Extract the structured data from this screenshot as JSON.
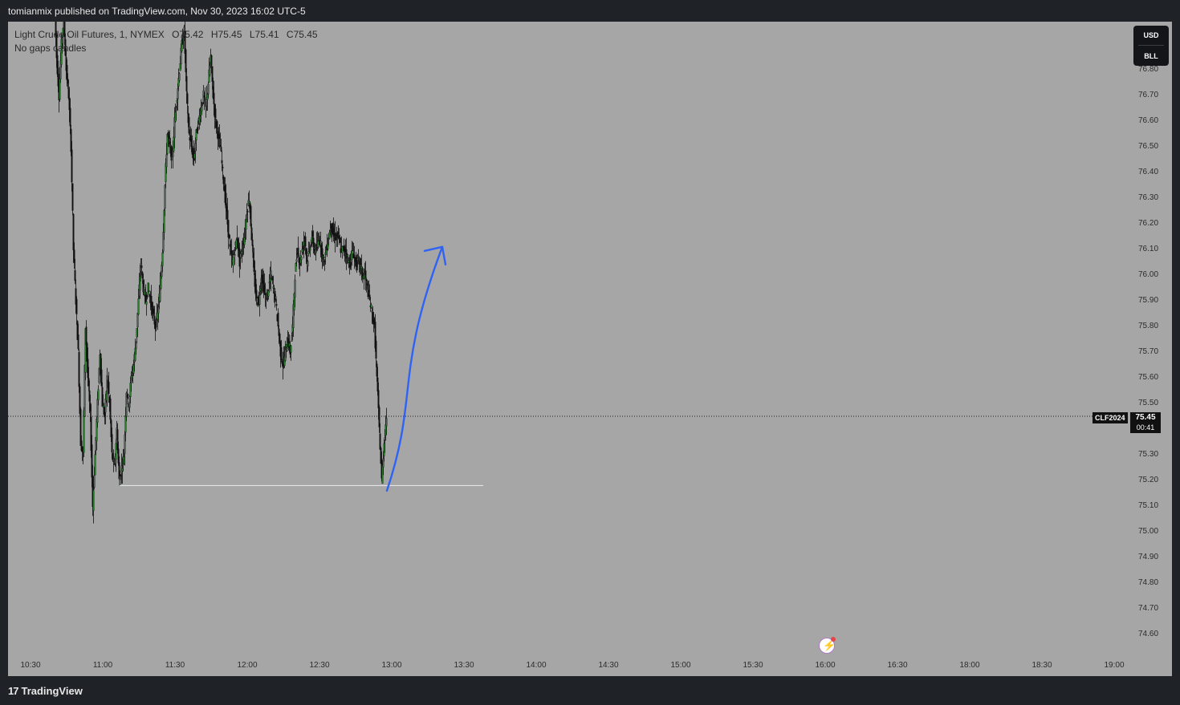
{
  "header": {
    "publisher_line": "tomianmix published on TradingView.com, Nov 30, 2023 16:02 UTC-5"
  },
  "legend": {
    "instrument": "Light Crude Oil Futures, 1, NYMEX",
    "open": "O75.42",
    "high": "H75.45",
    "low": "L75.41",
    "close": "C75.45",
    "subtitle": "No gaps candles"
  },
  "currency": {
    "top": "USD",
    "bottom": "BLL"
  },
  "price_axis": {
    "ticks": [
      "76.80",
      "76.70",
      "76.60",
      "76.50",
      "76.40",
      "76.30",
      "76.20",
      "76.10",
      "76.00",
      "75.90",
      "75.80",
      "75.70",
      "75.60",
      "75.50",
      "75.30",
      "75.20",
      "75.10",
      "75.00",
      "74.90",
      "74.80",
      "74.70",
      "74.60"
    ]
  },
  "time_axis": {
    "ticks": [
      "10:30",
      "11:00",
      "11:30",
      "12:00",
      "12:30",
      "13:00",
      "13:30",
      "14:00",
      "14:30",
      "15:00",
      "15:30",
      "16:00",
      "16:30",
      "18:00",
      "18:30",
      "19:00"
    ]
  },
  "last_price": {
    "symbol": "CLF2024",
    "price": "75.45",
    "countdown": "00:41"
  },
  "footer": {
    "brand": "TradingView",
    "brand_mark": "17"
  },
  "colors": {
    "chart_bg": "#a6a6a6",
    "frame_bg": "#1f2227",
    "candle_up": "#2e7d32",
    "candle_down": "#111111",
    "arrow": "#2962ff",
    "support_line": "#e8e8e8"
  },
  "chart_data": {
    "type": "line",
    "ylim": [
      74.56,
      76.86
    ],
    "xlim_minutes_since_open": [
      0,
      216
    ],
    "time_axis_start": "10:30",
    "note_xaxis": "minutes after 10:30",
    "series": [
      {
        "values": [
          [
            10,
            77.1
          ],
          [
            11,
            76.85
          ],
          [
            12,
            76.7
          ],
          [
            13,
            76.9
          ],
          [
            14,
            77.0
          ],
          [
            15,
            76.8
          ],
          [
            16,
            76.7
          ],
          [
            17,
            76.5
          ],
          [
            18,
            76.1
          ],
          [
            19,
            75.9
          ],
          [
            20,
            75.7
          ],
          [
            21,
            75.35
          ],
          [
            22,
            75.3
          ],
          [
            23,
            75.8
          ],
          [
            24,
            75.6
          ],
          [
            25,
            75.45
          ],
          [
            26,
            75.1
          ],
          [
            27,
            75.3
          ],
          [
            28,
            75.5
          ],
          [
            29,
            75.7
          ],
          [
            30,
            75.5
          ],
          [
            31,
            75.45
          ],
          [
            32,
            75.6
          ],
          [
            33,
            75.5
          ],
          [
            34,
            75.3
          ],
          [
            35,
            75.25
          ],
          [
            36,
            75.4
          ],
          [
            37,
            75.2
          ],
          [
            38,
            75.25
          ],
          [
            39,
            75.3
          ],
          [
            40,
            75.55
          ],
          [
            41,
            75.5
          ],
          [
            42,
            75.6
          ],
          [
            43,
            75.65
          ],
          [
            44,
            75.75
          ],
          [
            45,
            75.9
          ],
          [
            46,
            76.05
          ],
          [
            47,
            75.95
          ],
          [
            48,
            75.9
          ],
          [
            49,
            75.95
          ],
          [
            50,
            75.9
          ],
          [
            51,
            75.85
          ],
          [
            52,
            75.8
          ],
          [
            53,
            75.85
          ],
          [
            54,
            75.95
          ],
          [
            55,
            76.1
          ],
          [
            56,
            76.35
          ],
          [
            57,
            76.55
          ],
          [
            58,
            76.5
          ],
          [
            59,
            76.45
          ],
          [
            60,
            76.6
          ],
          [
            61,
            76.7
          ],
          [
            62,
            76.8
          ],
          [
            63,
            76.9
          ],
          [
            64,
            76.95
          ],
          [
            65,
            76.7
          ],
          [
            66,
            76.55
          ],
          [
            67,
            76.5
          ],
          [
            68,
            76.45
          ],
          [
            69,
            76.55
          ],
          [
            70,
            76.6
          ],
          [
            71,
            76.65
          ],
          [
            72,
            76.7
          ],
          [
            73,
            76.65
          ],
          [
            74,
            76.75
          ],
          [
            75,
            76.85
          ],
          [
            76,
            76.7
          ],
          [
            77,
            76.6
          ],
          [
            78,
            76.55
          ],
          [
            79,
            76.5
          ],
          [
            80,
            76.4
          ],
          [
            81,
            76.3
          ],
          [
            82,
            76.2
          ],
          [
            83,
            76.1
          ],
          [
            84,
            76.05
          ],
          [
            85,
            76.1
          ],
          [
            86,
            76.15
          ],
          [
            87,
            76.05
          ],
          [
            88,
            76.1
          ],
          [
            89,
            76.15
          ],
          [
            90,
            76.25
          ],
          [
            91,
            76.3
          ],
          [
            92,
            76.15
          ],
          [
            93,
            76.0
          ],
          [
            94,
            75.9
          ],
          [
            95,
            75.9
          ],
          [
            96,
            76.0
          ],
          [
            97,
            75.95
          ],
          [
            98,
            75.9
          ],
          [
            99,
            75.95
          ],
          [
            100,
            76.0
          ],
          [
            101,
            75.95
          ],
          [
            102,
            75.9
          ],
          [
            103,
            75.8
          ],
          [
            104,
            75.7
          ],
          [
            105,
            75.65
          ],
          [
            106,
            75.7
          ],
          [
            107,
            75.75
          ],
          [
            108,
            75.7
          ],
          [
            109,
            75.8
          ],
          [
            110,
            76.0
          ],
          [
            111,
            76.1
          ],
          [
            112,
            76.05
          ],
          [
            113,
            76.1
          ],
          [
            114,
            76.15
          ],
          [
            115,
            76.05
          ],
          [
            116,
            76.1
          ],
          [
            117,
            76.15
          ],
          [
            118,
            76.1
          ],
          [
            119,
            76.1
          ],
          [
            120,
            76.15
          ],
          [
            121,
            76.1
          ],
          [
            122,
            76.05
          ],
          [
            123,
            76.1
          ],
          [
            124,
            76.15
          ],
          [
            125,
            76.2
          ],
          [
            126,
            76.15
          ],
          [
            127,
            76.15
          ],
          [
            128,
            76.15
          ],
          [
            129,
            76.1
          ],
          [
            130,
            76.1
          ],
          [
            131,
            76.1
          ],
          [
            132,
            76.05
          ],
          [
            133,
            76.05
          ],
          [
            134,
            76.1
          ],
          [
            135,
            76.05
          ],
          [
            136,
            76.05
          ],
          [
            137,
            76.05
          ],
          [
            138,
            76.0
          ],
          [
            139,
            76.0
          ],
          [
            140,
            75.95
          ],
          [
            141,
            75.9
          ],
          [
            142,
            75.85
          ],
          [
            143,
            75.8
          ],
          [
            144,
            75.6
          ],
          [
            145,
            75.4
          ],
          [
            146,
            75.2
          ],
          [
            147,
            75.35
          ],
          [
            148,
            75.45
          ]
        ]
      }
    ],
    "annotations": [
      {
        "type": "horizontal-line",
        "price": 75.18,
        "x_from": 37,
        "x_to": 188
      },
      {
        "type": "arrow",
        "from": [
          148,
          75.16
        ],
        "to": [
          171,
          76.11
        ]
      }
    ]
  }
}
